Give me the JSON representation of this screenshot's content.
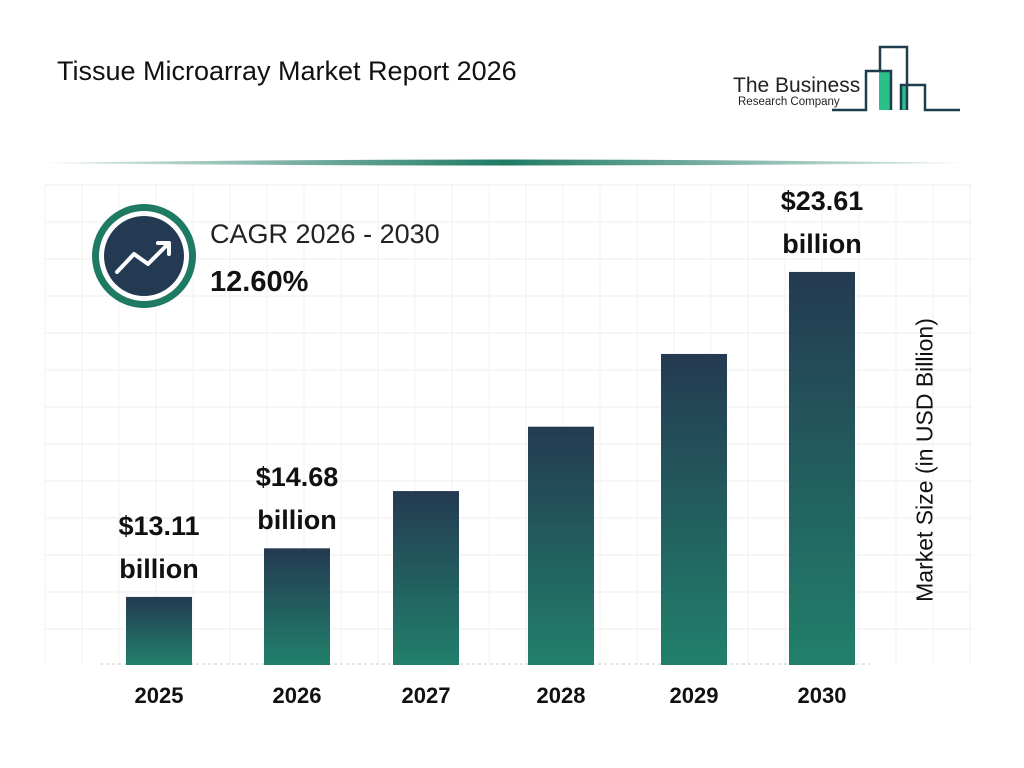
{
  "header": {
    "title": "Tissue Microarray Market Report 2026"
  },
  "logo": {
    "line1": "The Business",
    "line2": "Research Company"
  },
  "cagr": {
    "label": "CAGR 2026 - 2030",
    "value": "12.60%",
    "icon": "trend-up-arrow-icon"
  },
  "colors": {
    "bar_top": "#243a52",
    "bar_bottom": "#21806b",
    "accent": "#1f7a64",
    "logo_green": "#2bbf8a"
  },
  "chart_data": {
    "type": "bar",
    "title": "Tissue Microarray Market Report 2026",
    "categories": [
      "2025",
      "2026",
      "2027",
      "2028",
      "2029",
      "2030"
    ],
    "values": [
      13.11,
      14.68,
      16.53,
      18.61,
      20.96,
      23.61
    ],
    "data_labels": [
      {
        "value": "$13.11",
        "unit": "billion"
      },
      {
        "value": "$14.68",
        "unit": "billion"
      },
      null,
      null,
      null,
      {
        "value": "$23.61",
        "unit": "billion"
      }
    ],
    "ylabel": "Market Size (in USD Billion)",
    "xlabel": "",
    "grid": true,
    "legend": "none"
  }
}
